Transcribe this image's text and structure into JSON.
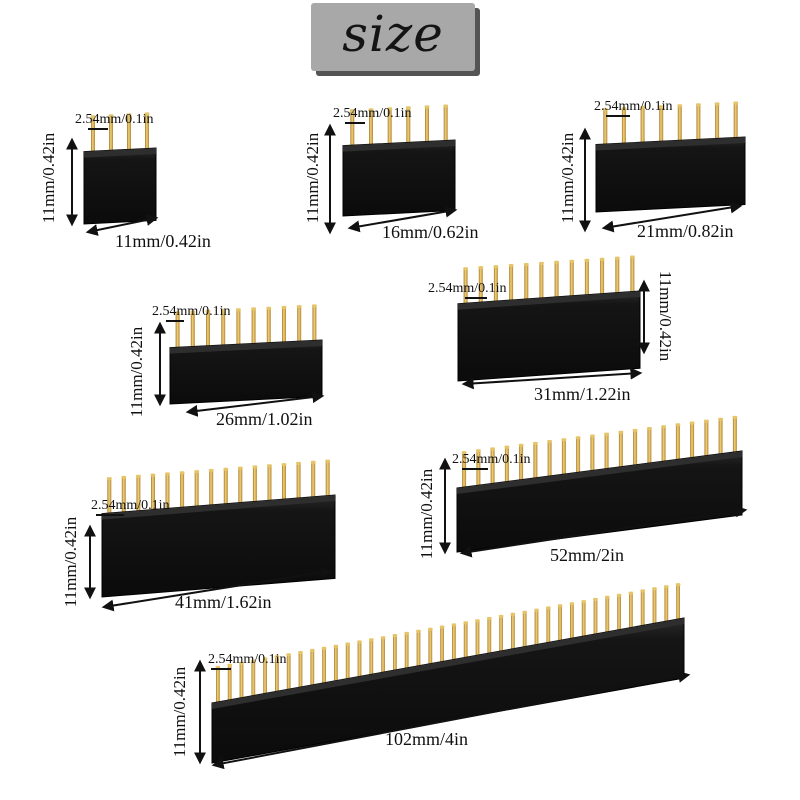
{
  "title": "size",
  "colors": {
    "title_bg": "#a8a8a8",
    "title_shadow": "#545454",
    "header_body": "#141414",
    "pin_gold": "#d9ad4a",
    "text": "#111111"
  },
  "headers": [
    {
      "id": "h4",
      "pins": 4,
      "pitch_label": "2.54mm/0.1in",
      "height_label": "11mm/0.42in",
      "length_label": "11mm/0.42in"
    },
    {
      "id": "h6",
      "pins": 6,
      "pitch_label": "2.54mm/0.1in",
      "height_label": "11mm/0.42in",
      "length_label": "16mm/0.62in"
    },
    {
      "id": "h8",
      "pins": 8,
      "pitch_label": "2.54mm/0.1in",
      "height_label": "11mm/0.42in",
      "length_label": "21mm/0.82in"
    },
    {
      "id": "h10",
      "pins": 10,
      "pitch_label": "2.54mm/0.1in",
      "height_label": "11mm/0.42in",
      "length_label": "26mm/1.02in"
    },
    {
      "id": "h12",
      "pins": 12,
      "pitch_label": "2.54mm/0.1in",
      "height_label": "11mm/0.42in",
      "length_label": "31mm/1.22in"
    },
    {
      "id": "h16",
      "pins": 16,
      "pitch_label": "2.54mm/0.1in",
      "height_label": "11mm/0.42in",
      "length_label": "41mm/1.62in"
    },
    {
      "id": "h20",
      "pins": 20,
      "pitch_label": "2.54mm/0.1in",
      "height_label": "11mm/0.42in",
      "length_label": "52mm/2in"
    },
    {
      "id": "h40",
      "pins": 40,
      "pitch_label": "2.54mm/0.1in",
      "height_label": "11mm/0.42in",
      "length_label": "102mm/4in"
    }
  ]
}
